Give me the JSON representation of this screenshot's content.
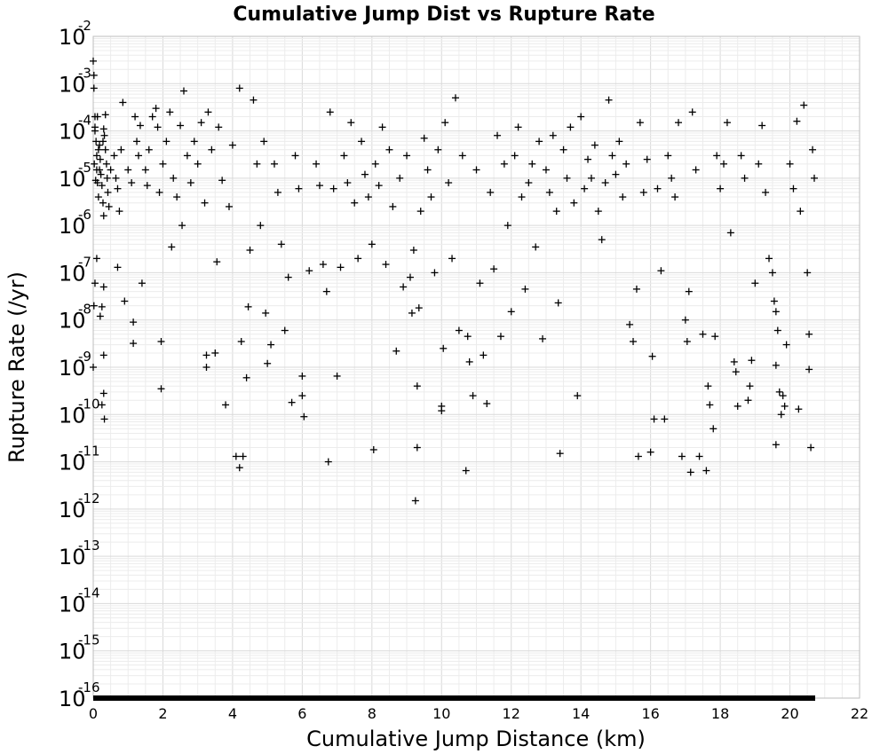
{
  "chart_data": {
    "type": "scatter",
    "title": "Cumulative Jump Dist vs Rupture Rate",
    "xlabel": "Cumulative Jump Distance (km)",
    "ylabel": "Rupture Rate (/yr)",
    "xlim": [
      0,
      22
    ],
    "ylim_log10": [
      -16,
      -2
    ],
    "yscale": "log",
    "x_ticks": [
      "0",
      "2",
      "4",
      "6",
      "8",
      "10",
      "12",
      "14",
      "16",
      "18",
      "20",
      "22"
    ],
    "y_ticks": [
      {
        "base": "10",
        "exp": "-2"
      },
      {
        "base": "10",
        "exp": "-3"
      },
      {
        "base": "10",
        "exp": "-4"
      },
      {
        "base": "10",
        "exp": "-5"
      },
      {
        "base": "10",
        "exp": "-6"
      },
      {
        "base": "10",
        "exp": "-7"
      },
      {
        "base": "10",
        "exp": "-8"
      },
      {
        "base": "10",
        "exp": "-9"
      },
      {
        "base": "10",
        "exp": "-10"
      },
      {
        "base": "10",
        "exp": "-11"
      },
      {
        "base": "10",
        "exp": "-12"
      },
      {
        "base": "10",
        "exp": "-13"
      },
      {
        "base": "10",
        "exp": "-14"
      },
      {
        "base": "10",
        "exp": "-15"
      },
      {
        "base": "10",
        "exp": "-16"
      }
    ],
    "grid": true,
    "marker": "plus",
    "marker_color": "#000000",
    "floor_value": "1e-16",
    "floor_x_range": [
      0,
      20.7
    ],
    "points": [
      [
        0.0,
        0.003
      ],
      [
        0.02,
        0.0015
      ],
      [
        0.02,
        0.0008
      ],
      [
        0.05,
        0.0002
      ],
      [
        0.05,
        0.00012
      ],
      [
        0.08,
        6e-05
      ],
      [
        0.1,
        3e-05
      ],
      [
        0.1,
        1.5e-05
      ],
      [
        0.12,
        8e-06
      ],
      [
        0.15,
        4e-06
      ],
      [
        0.05,
        0.0001
      ],
      [
        0.03,
        2e-05
      ],
      [
        0.07,
        9e-06
      ],
      [
        0.18,
        5e-05
      ],
      [
        0.2,
        2.5e-05
      ],
      [
        0.22,
        1.2e-05
      ],
      [
        0.25,
        7e-06
      ],
      [
        0.28,
        3e-06
      ],
      [
        0.3,
        1.6e-06
      ],
      [
        0.15,
        4e-05
      ],
      [
        0.12,
        0.0002
      ],
      [
        0.32,
        8e-05
      ],
      [
        0.35,
        4e-05
      ],
      [
        0.38,
        2e-05
      ],
      [
        0.4,
        1e-05
      ],
      [
        0.42,
        5e-06
      ],
      [
        0.45,
        2.5e-06
      ],
      [
        0.3,
        0.00011
      ],
      [
        0.35,
        0.00022
      ],
      [
        0.18,
        1.5e-05
      ],
      [
        0.28,
        6e-05
      ],
      [
        0.1,
        2e-07
      ],
      [
        0.05,
        6e-08
      ],
      [
        0.02,
        2e-08
      ],
      [
        0.0,
        1e-09
      ],
      [
        0.25,
        1.9e-08
      ],
      [
        0.3,
        5e-08
      ],
      [
        0.3,
        1.8e-09
      ],
      [
        0.3,
        2.8e-10
      ],
      [
        0.25,
        1.6e-10
      ],
      [
        0.32,
        8e-11
      ],
      [
        0.2,
        1.2e-08
      ],
      [
        0.5,
        1.5e-05
      ],
      [
        0.6,
        3e-05
      ],
      [
        0.65,
        1e-05
      ],
      [
        0.7,
        6e-06
      ],
      [
        0.75,
        2e-06
      ],
      [
        0.7,
        1.3e-07
      ],
      [
        0.8,
        4e-05
      ],
      [
        0.85,
        0.0004
      ],
      [
        0.9,
        2.5e-08
      ],
      [
        1.0,
        1.5e-05
      ],
      [
        1.1,
        8e-06
      ],
      [
        1.15,
        3.2e-09
      ],
      [
        1.15,
        9e-09
      ],
      [
        1.2,
        0.0002
      ],
      [
        1.25,
        6e-05
      ],
      [
        1.3,
        3e-05
      ],
      [
        1.35,
        0.00013
      ],
      [
        1.4,
        6e-08
      ],
      [
        1.5,
        1.5e-05
      ],
      [
        1.55,
        7e-06
      ],
      [
        1.6,
        4e-05
      ],
      [
        1.7,
        0.0002
      ],
      [
        1.8,
        0.0003
      ],
      [
        1.85,
        0.00012
      ],
      [
        1.9,
        5e-06
      ],
      [
        1.95,
        3.5e-09
      ],
      [
        1.95,
        3.5e-10
      ],
      [
        2.0,
        2e-05
      ],
      [
        2.1,
        6e-05
      ],
      [
        2.2,
        0.00025
      ],
      [
        2.25,
        3.5e-07
      ],
      [
        2.3,
        1e-05
      ],
      [
        2.4,
        4e-06
      ],
      [
        2.5,
        0.00013
      ],
      [
        2.55,
        1e-06
      ],
      [
        2.6,
        0.0007
      ],
      [
        2.7,
        3e-05
      ],
      [
        2.8,
        8e-06
      ],
      [
        2.9,
        6e-05
      ],
      [
        3.0,
        2e-05
      ],
      [
        3.1,
        0.00015
      ],
      [
        3.2,
        3e-06
      ],
      [
        3.25,
        1.8e-09
      ],
      [
        3.25,
        1e-09
      ],
      [
        3.3,
        0.00025
      ],
      [
        3.4,
        4e-05
      ],
      [
        3.5,
        2e-09
      ],
      [
        3.55,
        1.7e-07
      ],
      [
        3.6,
        0.00012
      ],
      [
        3.7,
        9e-06
      ],
      [
        3.8,
        1.6e-10
      ],
      [
        3.9,
        2.5e-06
      ],
      [
        4.0,
        5e-05
      ],
      [
        4.1,
        1.3e-11
      ],
      [
        4.2,
        7.5e-12
      ],
      [
        4.25,
        3.5e-09
      ],
      [
        4.2,
        0.0008
      ],
      [
        4.3,
        1.3e-11
      ],
      [
        4.4,
        6e-10
      ],
      [
        4.45,
        1.9e-08
      ],
      [
        4.5,
        3e-07
      ],
      [
        4.6,
        0.00045
      ],
      [
        4.7,
        2e-05
      ],
      [
        4.8,
        1e-06
      ],
      [
        4.9,
        6e-05
      ],
      [
        4.95,
        1.4e-08
      ],
      [
        5.0,
        1.2e-09
      ],
      [
        5.1,
        3e-09
      ],
      [
        5.2,
        2e-05
      ],
      [
        5.3,
        5e-06
      ],
      [
        5.4,
        4e-07
      ],
      [
        5.5,
        6e-09
      ],
      [
        5.6,
        8e-08
      ],
      [
        5.7,
        1.8e-10
      ],
      [
        5.8,
        3e-05
      ],
      [
        5.9,
        6e-06
      ],
      [
        6.0,
        2.5e-10
      ],
      [
        6.0,
        6.5e-10
      ],
      [
        6.05,
        9e-11
      ],
      [
        6.2,
        1.1e-07
      ],
      [
        6.4,
        2e-05
      ],
      [
        6.5,
        7e-06
      ],
      [
        6.6,
        1.5e-07
      ],
      [
        6.7,
        4e-08
      ],
      [
        6.75,
        1e-11
      ],
      [
        6.8,
        0.00025
      ],
      [
        6.9,
        6e-06
      ],
      [
        7.0,
        6.5e-10
      ],
      [
        7.1,
        1.3e-07
      ],
      [
        7.2,
        3e-05
      ],
      [
        7.3,
        8e-06
      ],
      [
        7.4,
        0.00015
      ],
      [
        7.5,
        3e-06
      ],
      [
        7.6,
        2e-07
      ],
      [
        7.7,
        6e-05
      ],
      [
        7.8,
        1.2e-05
      ],
      [
        7.9,
        4e-06
      ],
      [
        8.0,
        4e-07
      ],
      [
        8.05,
        1.8e-11
      ],
      [
        8.1,
        2e-05
      ],
      [
        8.2,
        7e-06
      ],
      [
        8.3,
        0.00012
      ],
      [
        8.4,
        1.5e-07
      ],
      [
        8.5,
        4e-05
      ],
      [
        8.6,
        2.5e-06
      ],
      [
        8.7,
        2.2e-09
      ],
      [
        8.8,
        1e-05
      ],
      [
        8.9,
        5e-08
      ],
      [
        9.0,
        3e-05
      ],
      [
        9.1,
        8e-08
      ],
      [
        9.15,
        1.4e-08
      ],
      [
        9.2,
        3e-07
      ],
      [
        9.25,
        1.5e-12
      ],
      [
        9.3,
        2e-11
      ],
      [
        9.3,
        4e-10
      ],
      [
        9.35,
        1.8e-08
      ],
      [
        9.4,
        2e-06
      ],
      [
        9.5,
        7e-05
      ],
      [
        9.6,
        1.5e-05
      ],
      [
        9.7,
        4e-06
      ],
      [
        9.8,
        1e-07
      ],
      [
        9.9,
        4e-05
      ],
      [
        10.0,
        1.5e-10
      ],
      [
        10.0,
        1.2e-10
      ],
      [
        10.05,
        2.5e-09
      ],
      [
        10.1,
        0.00015
      ],
      [
        10.2,
        8e-06
      ],
      [
        10.3,
        2e-07
      ],
      [
        10.4,
        0.0005
      ],
      [
        10.5,
        6e-09
      ],
      [
        10.6,
        3e-05
      ],
      [
        10.7,
        6.5e-12
      ],
      [
        10.75,
        4.5e-09
      ],
      [
        10.8,
        1.3e-09
      ],
      [
        10.9,
        2.5e-10
      ],
      [
        11.0,
        1.5e-05
      ],
      [
        11.1,
        6e-08
      ],
      [
        11.2,
        1.8e-09
      ],
      [
        11.3,
        1.7e-10
      ],
      [
        11.4,
        5e-06
      ],
      [
        11.5,
        1.2e-07
      ],
      [
        11.6,
        8e-05
      ],
      [
        11.7,
        4.5e-09
      ],
      [
        11.8,
        2e-05
      ],
      [
        11.9,
        1e-06
      ],
      [
        12.0,
        1.5e-08
      ],
      [
        12.1,
        3e-05
      ],
      [
        12.2,
        0.00012
      ],
      [
        12.3,
        4e-06
      ],
      [
        12.4,
        4.5e-08
      ],
      [
        12.5,
        8e-06
      ],
      [
        12.6,
        2e-05
      ],
      [
        12.7,
        3.5e-07
      ],
      [
        12.8,
        6e-05
      ],
      [
        12.9,
        4e-09
      ],
      [
        13.0,
        1.5e-05
      ],
      [
        13.1,
        5e-06
      ],
      [
        13.2,
        8e-05
      ],
      [
        13.3,
        2e-06
      ],
      [
        13.35,
        2.3e-08
      ],
      [
        13.4,
        1.5e-11
      ],
      [
        13.5,
        4e-05
      ],
      [
        13.6,
        1e-05
      ],
      [
        13.7,
        0.00012
      ],
      [
        13.8,
        3e-06
      ],
      [
        13.9,
        2.5e-10
      ],
      [
        14.0,
        0.0002
      ],
      [
        14.1,
        6e-06
      ],
      [
        14.2,
        2.5e-05
      ],
      [
        14.3,
        1e-05
      ],
      [
        14.4,
        5e-05
      ],
      [
        14.5,
        2e-06
      ],
      [
        14.6,
        5e-07
      ],
      [
        14.7,
        8e-06
      ],
      [
        14.8,
        0.00045
      ],
      [
        14.9,
        3e-05
      ],
      [
        15.0,
        1.2e-05
      ],
      [
        15.1,
        6e-05
      ],
      [
        15.2,
        4e-06
      ],
      [
        15.3,
        2e-05
      ],
      [
        15.4,
        8e-09
      ],
      [
        15.5,
        3.5e-09
      ],
      [
        15.6,
        4.5e-08
      ],
      [
        15.65,
        1.3e-11
      ],
      [
        15.7,
        0.00015
      ],
      [
        15.8,
        5e-06
      ],
      [
        15.9,
        2.5e-05
      ],
      [
        16.0,
        1.6e-11
      ],
      [
        16.05,
        1.7e-09
      ],
      [
        16.1,
        8e-11
      ],
      [
        16.2,
        6e-06
      ],
      [
        16.3,
        1.1e-07
      ],
      [
        16.4,
        8e-11
      ],
      [
        16.5,
        3e-05
      ],
      [
        16.6,
        1e-05
      ],
      [
        16.7,
        4e-06
      ],
      [
        16.8,
        0.00015
      ],
      [
        16.9,
        1.3e-11
      ],
      [
        17.0,
        1e-08
      ],
      [
        17.05,
        3.5e-09
      ],
      [
        17.1,
        4e-08
      ],
      [
        17.15,
        6e-12
      ],
      [
        17.2,
        0.00025
      ],
      [
        17.3,
        1.5e-05
      ],
      [
        17.4,
        1.3e-11
      ],
      [
        17.5,
        5e-09
      ],
      [
        17.6,
        6.5e-12
      ],
      [
        17.65,
        4e-10
      ],
      [
        17.7,
        1.6e-10
      ],
      [
        17.8,
        5e-11
      ],
      [
        17.85,
        4.5e-09
      ],
      [
        17.9,
        3e-05
      ],
      [
        18.0,
        6e-06
      ],
      [
        18.1,
        2e-05
      ],
      [
        18.2,
        0.00015
      ],
      [
        18.3,
        7e-07
      ],
      [
        18.4,
        1.3e-09
      ],
      [
        18.45,
        8e-10
      ],
      [
        18.5,
        1.5e-10
      ],
      [
        18.6,
        3e-05
      ],
      [
        18.7,
        1e-05
      ],
      [
        18.8,
        2e-10
      ],
      [
        18.85,
        4e-10
      ],
      [
        18.9,
        1.4e-09
      ],
      [
        19.0,
        6e-08
      ],
      [
        19.1,
        2e-05
      ],
      [
        19.2,
        0.00013
      ],
      [
        19.3,
        5e-06
      ],
      [
        19.4,
        2e-07
      ],
      [
        19.5,
        1e-07
      ],
      [
        19.55,
        2.5e-08
      ],
      [
        19.6,
        1.1e-09
      ],
      [
        19.6,
        1.5e-08
      ],
      [
        19.65,
        6e-09
      ],
      [
        19.7,
        3e-10
      ],
      [
        19.75,
        1e-10
      ],
      [
        19.6,
        2.3e-11
      ],
      [
        19.8,
        2.5e-10
      ],
      [
        19.85,
        1.5e-10
      ],
      [
        19.9,
        3e-09
      ],
      [
        20.0,
        2e-05
      ],
      [
        20.1,
        6e-06
      ],
      [
        20.2,
        0.00016
      ],
      [
        20.25,
        1.3e-10
      ],
      [
        20.3,
        2e-06
      ],
      [
        20.4,
        0.00035
      ],
      [
        20.5,
        1e-07
      ],
      [
        20.55,
        5e-09
      ],
      [
        20.55,
        9e-10
      ],
      [
        20.6,
        2e-11
      ],
      [
        20.65,
        4e-05
      ],
      [
        20.7,
        1e-05
      ]
    ]
  }
}
